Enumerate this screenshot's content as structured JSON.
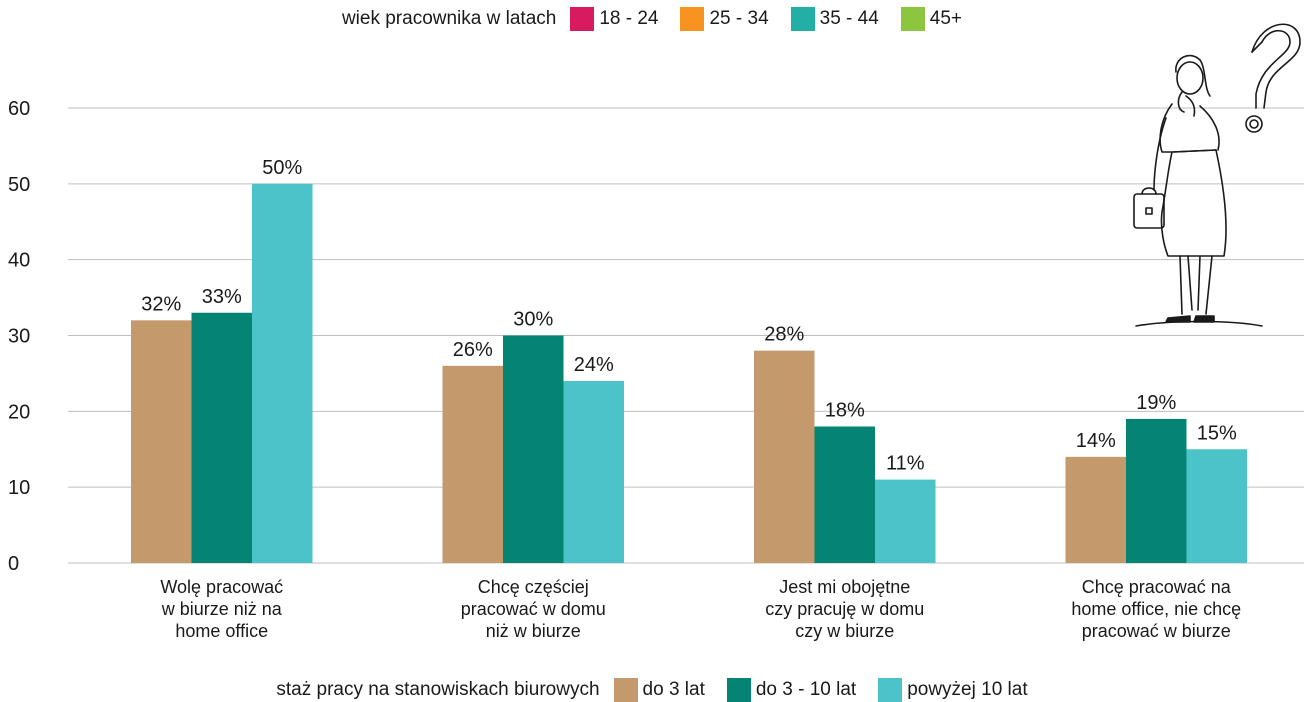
{
  "legend_top": {
    "title": "wiek pracownika w latach",
    "items": [
      {
        "label": "18 - 24",
        "color": "#d81b60"
      },
      {
        "label": "25 - 34",
        "color": "#f7931e"
      },
      {
        "label": "35 - 44",
        "color": "#22b0a6"
      },
      {
        "label": "45+",
        "color": "#8cc63f"
      }
    ]
  },
  "legend_bottom": {
    "title": "staż pracy na stanowiskach biurowych",
    "items": [
      {
        "label": "do 3 lat",
        "color": "#c49a6c"
      },
      {
        "label": "do 3 - 10 lat",
        "color": "#058373"
      },
      {
        "label": "powyżej 10 lat",
        "color": "#4bc3c9"
      }
    ]
  },
  "chart_data": {
    "type": "bar",
    "title": "",
    "xlabel": "",
    "ylabel": "",
    "ylim": [
      0,
      60
    ],
    "yticks": [
      0,
      10,
      20,
      30,
      40,
      50,
      60
    ],
    "grid": true,
    "legend_placement": "bottom",
    "categories": [
      [
        "Wolę pracować",
        "w biurze niż na",
        "home office"
      ],
      [
        "Chcę częściej",
        "pracować w domu",
        "niż w biurze"
      ],
      [
        "Jest mi obojętne",
        "czy pracuję w domu",
        "czy w biurze"
      ],
      [
        "Chcę pracować na",
        "home office, nie chcę",
        "pracować w biurze"
      ]
    ],
    "series": [
      {
        "name": "do 3 lat",
        "color": "#c49a6c",
        "values": [
          32,
          26,
          28,
          14
        ],
        "labels": [
          "32%",
          "26%",
          "28%",
          "14%"
        ]
      },
      {
        "name": "do 3 - 10 lat",
        "color": "#058373",
        "values": [
          33,
          30,
          18,
          19
        ],
        "labels": [
          "33%",
          "30%",
          "18%",
          "19%"
        ]
      },
      {
        "name": "powyżej 10 lat",
        "color": "#4bc3c9",
        "values": [
          50,
          24,
          11,
          15
        ],
        "labels": [
          "50%",
          "24%",
          "11%",
          "15%"
        ]
      }
    ]
  },
  "illustration": {
    "icon": "woman-with-question-mark-icon"
  }
}
